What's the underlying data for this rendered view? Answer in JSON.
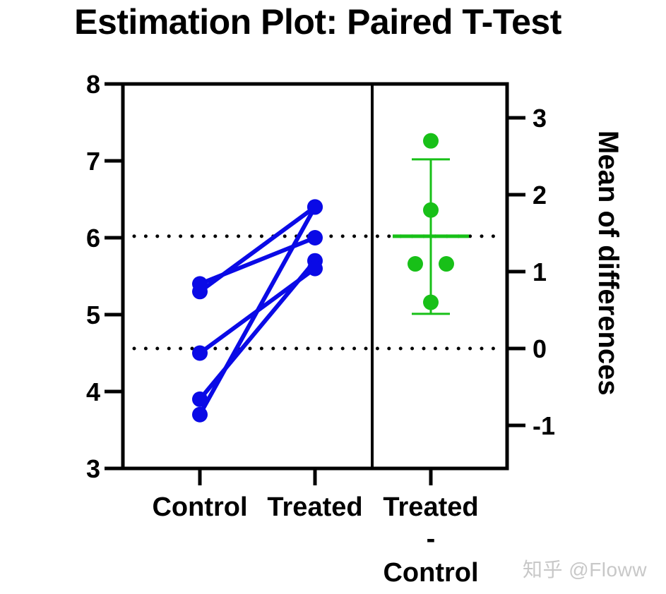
{
  "chart_data": {
    "type": "scatter",
    "subtype": "estimation-plot-paired",
    "title": "Estimation Plot: Paired T-Test",
    "xlabel": "",
    "ylabel_left": "",
    "ylabel_right": "Mean of differences",
    "categories": [
      "Control",
      "Treated",
      "Treated\n-\nControl"
    ],
    "category_labels": {
      "control": "Control",
      "treated": "Treated",
      "diff_line1": "Treated",
      "diff_line2": "-",
      "diff_line3": "Control"
    },
    "ylim_left": [
      3,
      8
    ],
    "yticks_left": [
      3,
      4,
      5,
      6,
      7,
      8
    ],
    "ylim_right": [
      -1.5,
      3.5
    ],
    "yticks_right": [
      -1,
      0,
      1,
      2,
      3
    ],
    "pairs": [
      {
        "control": 3.7,
        "treated": 6.4
      },
      {
        "control": 3.9,
        "treated": 5.7
      },
      {
        "control": 4.5,
        "treated": 5.6
      },
      {
        "control": 5.3,
        "treated": 6.4
      },
      {
        "control": 5.4,
        "treated": 6.0
      }
    ],
    "differences": [
      2.7,
      1.8,
      1.1,
      1.1,
      0.6
    ],
    "mean_difference": 1.46,
    "ci_95": [
      0.45,
      2.46
    ],
    "control_mean": 4.56,
    "treated_mean": 6.02,
    "reference_lines": [
      {
        "style": "dotted",
        "left_value": 4.56,
        "right_value": 0
      },
      {
        "style": "dotted",
        "left_value": 6.02,
        "right_value": 1.46
      }
    ],
    "colors": {
      "paired": "#0a0ae6",
      "difference": "#18c018",
      "axis": "#000000",
      "dotted": "#000000"
    },
    "grid": false,
    "legend": null
  },
  "watermark": "知乎 @Floww"
}
